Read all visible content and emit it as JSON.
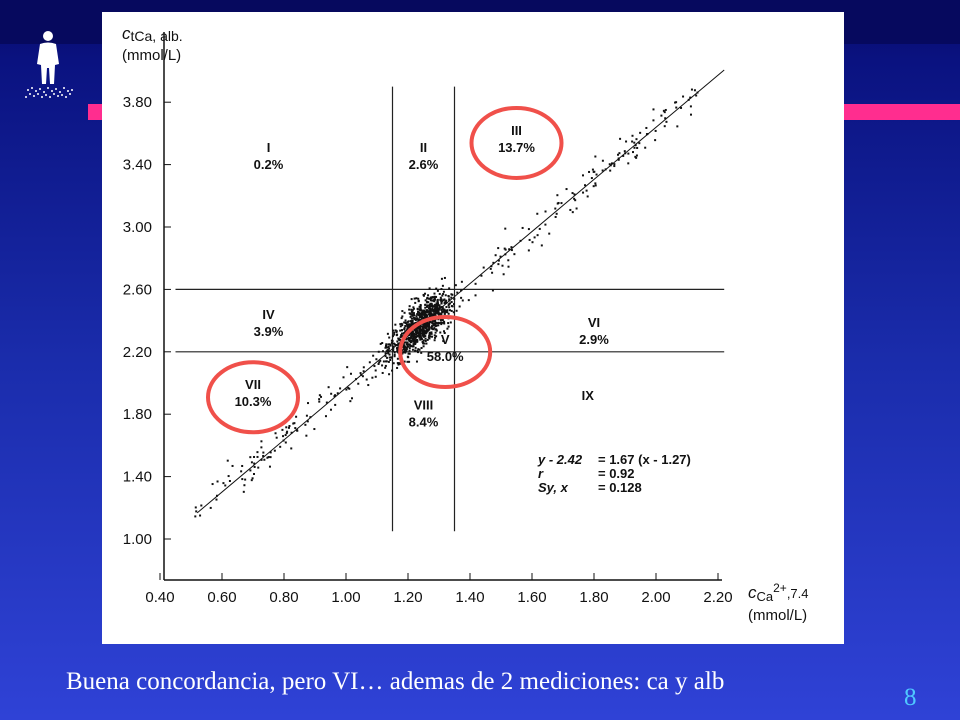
{
  "caption": "Buena concordancia, pero VI… ademas de 2 mediciones: ca y alb",
  "slide_number": "8",
  "colors": {
    "highlight_circle": "#f0504a",
    "accent_bar": "#ff2d8f",
    "background": "#1a2cab"
  },
  "chart_data": {
    "type": "scatter",
    "y_axis_label": {
      "main": "c",
      "sub": "tCa, alb.",
      "unit": "(mmol/L)"
    },
    "x_axis_label": {
      "main": "c",
      "sub": "Ca",
      "sup": "2+",
      "tail": ",7.4",
      "unit": "(mmol/L)"
    },
    "xlim": [
      0.4,
      2.2
    ],
    "ylim": [
      1.0,
      3.9
    ],
    "x_ticks": [
      "0.40",
      "0.60",
      "0.80",
      "1.00",
      "1.20",
      "1.40",
      "1.60",
      "1.80",
      "2.00",
      "2.20"
    ],
    "y_ticks": [
      "1.00",
      "1.40",
      "1.80",
      "2.20",
      "2.60",
      "3.00",
      "3.40",
      "3.80"
    ],
    "reference_lines": {
      "x": [
        1.15,
        1.35
      ],
      "y": [
        2.2,
        2.6
      ]
    },
    "regression": {
      "slope": 1.67,
      "x0": 1.27,
      "y0": 2.42,
      "x_range": [
        0.52,
        2.22
      ]
    },
    "zones": [
      {
        "id": "I",
        "label": "I",
        "pct": "0.2%",
        "x": 0.75,
        "y": 3.48,
        "circled": false
      },
      {
        "id": "II",
        "label": "II",
        "pct": "2.6%",
        "x": 1.25,
        "y": 3.48,
        "circled": false
      },
      {
        "id": "III",
        "label": "III",
        "pct": "13.7%",
        "x": 1.55,
        "y": 3.59,
        "circled": true
      },
      {
        "id": "IV",
        "label": "IV",
        "pct": "3.9%",
        "x": 0.75,
        "y": 2.41,
        "circled": false
      },
      {
        "id": "V",
        "label": "V",
        "pct": "58.0%",
        "x": 1.32,
        "y": 2.25,
        "circled": true
      },
      {
        "id": "VI",
        "label": "VI",
        "pct": "2.9%",
        "x": 1.8,
        "y": 2.36,
        "circled": false
      },
      {
        "id": "VII",
        "label": "VII",
        "pct": "10.3%",
        "x": 0.7,
        "y": 1.96,
        "circled": true
      },
      {
        "id": "VIII",
        "label": "VIII",
        "pct": "8.4%",
        "x": 1.25,
        "y": 1.83,
        "circled": false
      },
      {
        "id": "IX",
        "label": "IX",
        "pct": "",
        "x": 1.78,
        "y": 1.89,
        "circled": false
      }
    ],
    "stats": [
      {
        "lhs": "y - 2.42",
        "rhs": "= 1.67 (x - 1.27)"
      },
      {
        "lhs": "r",
        "rhs": "= 0.92"
      },
      {
        "lhs": "Sy, x",
        "rhs": "= 0.128"
      }
    ]
  }
}
